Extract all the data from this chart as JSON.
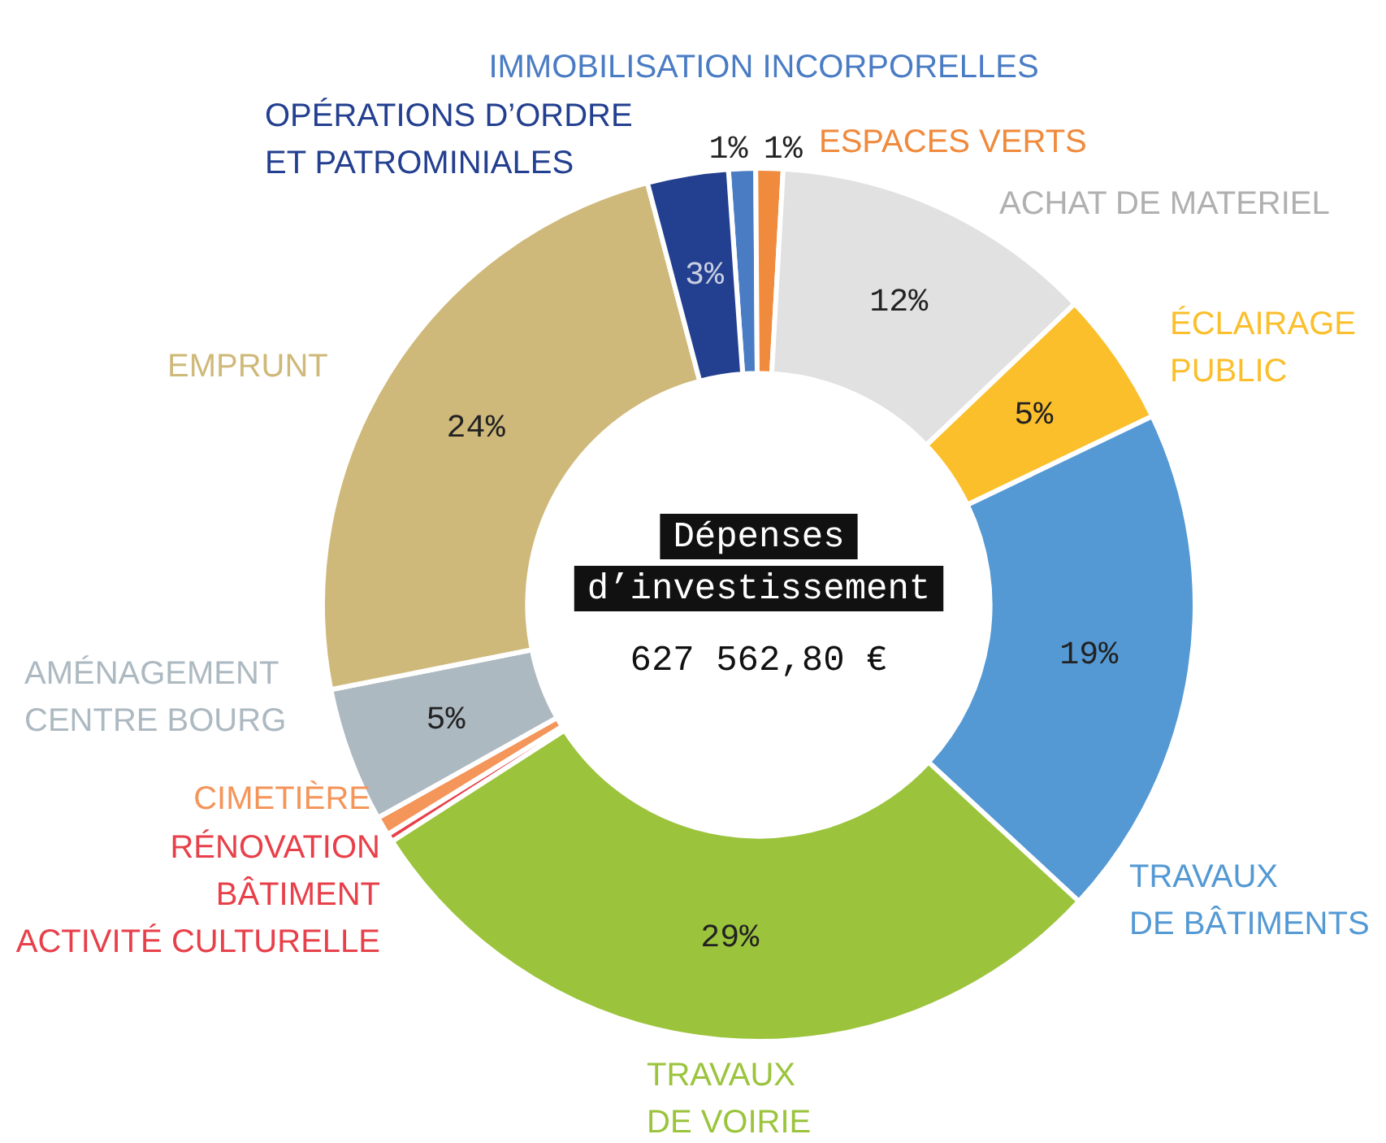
{
  "chart_data": {
    "type": "donut",
    "title": "Dépenses\nd’investissement",
    "subtitle": "627 562,80 €",
    "categories": [
      "IMMOBILISATION INCORPORELLES",
      "ESPACES VERTS",
      "ACHAT DE MATERIEL",
      "ÉCLAIRAGE\nPUBLIC",
      "TRAVAUX\nDE BÂTIMENTS",
      "TRAVAUX\nDE VOIRIE",
      "RÉNOVATION\nBÂTIMENT\nACTIVITÉ CULTURELLE",
      "CIMETIÈRE",
      "AMÉNAGEMENT\nCENTRE BOURG",
      "EMPRUNT",
      "OPÉRATIONS D’ORDRE\nET PATROMINIALES"
    ],
    "values": [
      1,
      1,
      12,
      5,
      19,
      29,
      0.3,
      0.7,
      5,
      24,
      3
    ],
    "value_labels": [
      "1%",
      "1%",
      "12%",
      "5%",
      "19%",
      "29%",
      null,
      null,
      "5%",
      "24%",
      "3%"
    ],
    "colors": [
      "#4a7cc4",
      "#f08a3c",
      "#e1e1e1",
      "#fbbf2c",
      "#5499d4",
      "#9bc43c",
      "#e8404a",
      "#f4955a",
      "#adb9c1",
      "#cfb97a",
      "#233f8f"
    ],
    "legend": false
  }
}
